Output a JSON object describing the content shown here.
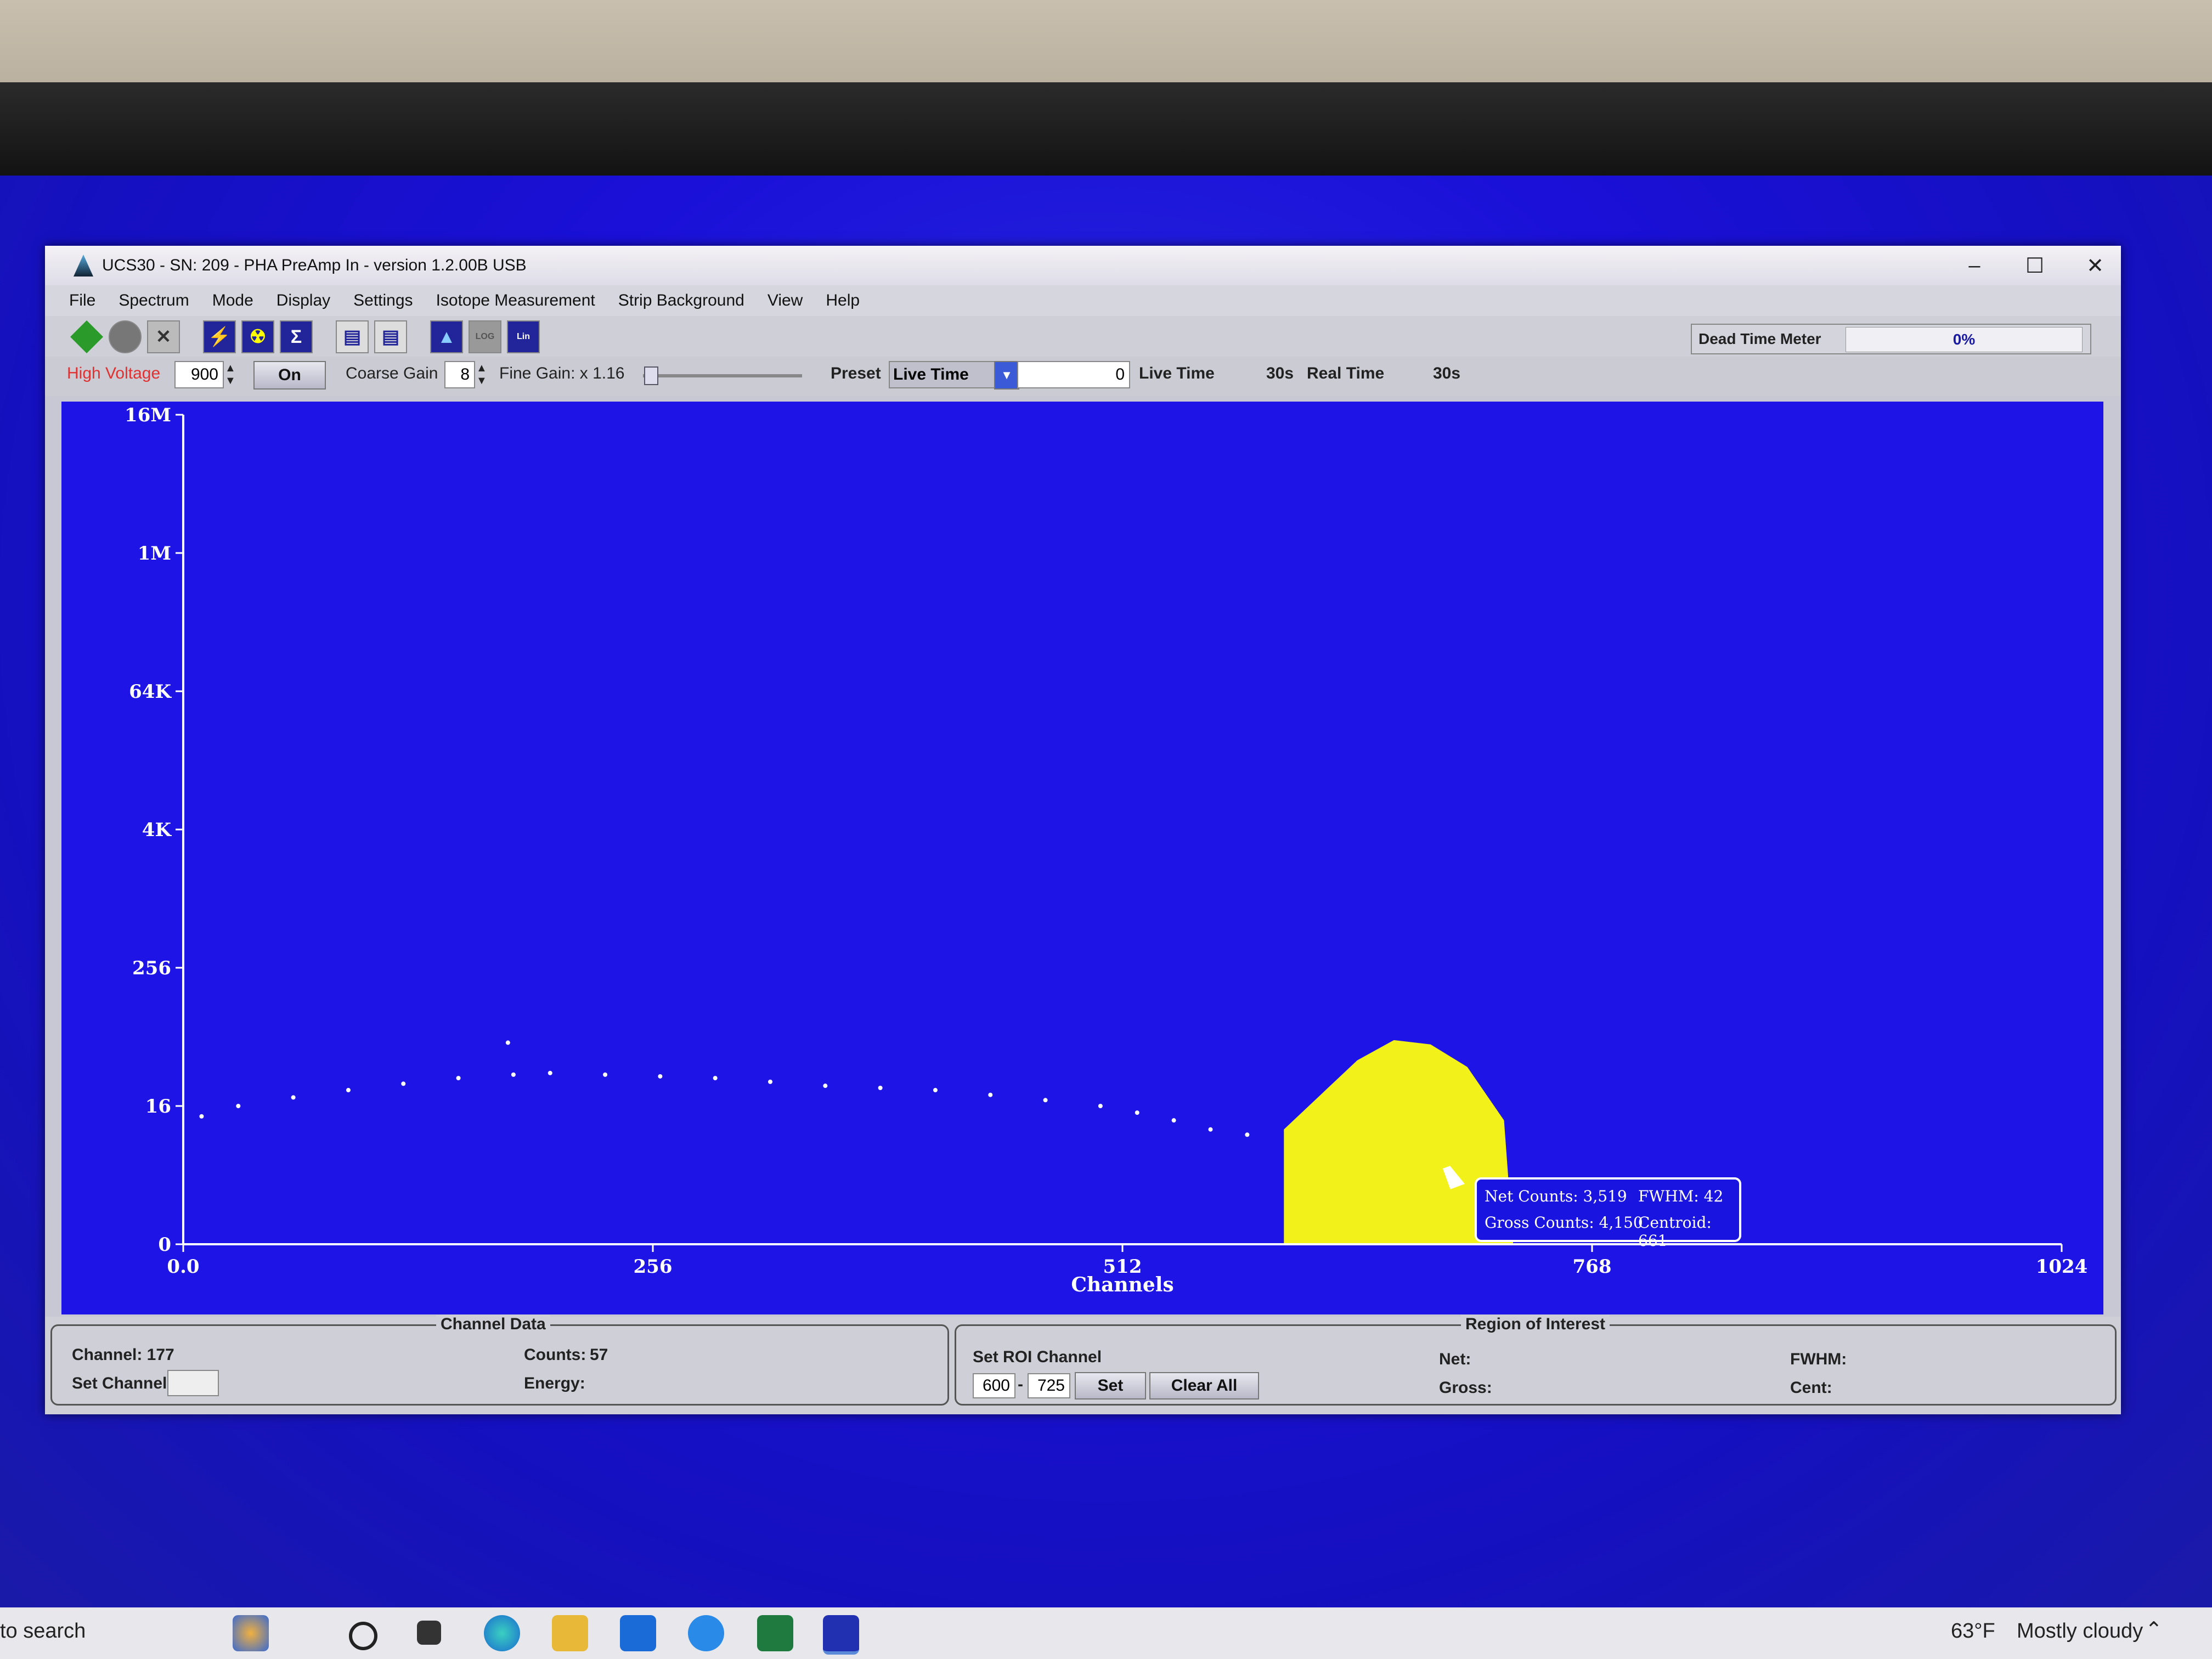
{
  "window": {
    "title": "UCS30 - SN: 209 - PHA PreAmp In  - version 1.2.00B USB"
  },
  "menu": [
    "File",
    "Spectrum",
    "Mode",
    "Display",
    "Settings",
    "Isotope Measurement",
    "Strip Background",
    "View",
    "Help"
  ],
  "toolbar": {
    "dead_time_label": "Dead Time Meter",
    "dead_time_value": "0%",
    "log_label": "LOG",
    "lin_label": "Lin"
  },
  "controls": {
    "high_voltage_label": "High Voltage",
    "high_voltage_value": "900",
    "hv_button": "On",
    "coarse_gain_label": "Coarse Gain",
    "coarse_gain_value": "8",
    "fine_gain_label": "Fine Gain: x 1.16",
    "fine_gain_fraction": 0.05,
    "preset_label": "Preset",
    "preset_mode": "Live Time",
    "preset_value": "0",
    "live_time_label": "Live Time",
    "live_time_value": "30s",
    "real_time_label": "Real Time",
    "real_time_value": "30s"
  },
  "chart_data": {
    "type": "scatter",
    "xlabel": "Channels",
    "xlim": [
      0,
      1024
    ],
    "x_ticks": [
      "0.0",
      "256",
      "512",
      "768",
      "1024"
    ],
    "y_scale": "log",
    "y_ticks": [
      "0",
      "16",
      "256",
      "4K",
      "64K",
      "1M",
      "16M"
    ],
    "y_tick_values": [
      1,
      16,
      256,
      4096,
      65536,
      1048576,
      16777216
    ],
    "roi": [
      600,
      725
    ],
    "roi_color": "#f2f21a",
    "point_color": "#ffffff",
    "series": [
      {
        "points": [
          [
            10,
            13
          ],
          [
            30,
            16
          ],
          [
            60,
            19
          ],
          [
            90,
            22
          ],
          [
            120,
            25
          ],
          [
            150,
            28
          ],
          [
            177,
            57
          ],
          [
            180,
            30
          ],
          [
            200,
            31
          ],
          [
            230,
            30
          ],
          [
            260,
            29
          ],
          [
            290,
            28
          ],
          [
            320,
            26
          ],
          [
            350,
            24
          ],
          [
            380,
            23
          ],
          [
            410,
            22
          ],
          [
            440,
            20
          ],
          [
            470,
            18
          ],
          [
            500,
            16
          ],
          [
            520,
            14
          ],
          [
            540,
            12
          ],
          [
            560,
            10
          ],
          [
            580,
            9
          ],
          [
            600,
            10
          ],
          [
            620,
            20
          ],
          [
            640,
            40
          ],
          [
            660,
            60
          ],
          [
            680,
            55
          ],
          [
            700,
            35
          ],
          [
            720,
            12
          ]
        ]
      }
    ]
  },
  "tooltip": {
    "net_counts": "Net Counts: 3,519",
    "fwhm": "FWHM: 42",
    "gross_counts": "Gross Counts: 4,150",
    "centroid": "Centroid: 661"
  },
  "channel_data": {
    "title": "Channel Data",
    "channel": "Channel: 177",
    "set_channel": "Set Channel",
    "counts_label": "Counts:",
    "counts_value": "57",
    "energy_label": "Energy:"
  },
  "roi_panel": {
    "title": "Region of Interest",
    "set_roi_label": "Set ROI Channel",
    "roi_from": "600",
    "roi_to": "725",
    "set_button": "Set",
    "clear_button": "Clear All",
    "net_label": "Net:",
    "gross_label": "Gross:",
    "fwhm_label": "FWHM:",
    "cent_label": "Cent:"
  },
  "taskbar": {
    "search_text": "to search",
    "weather_temp": "63°F",
    "weather_text": "Mostly cloudy"
  }
}
